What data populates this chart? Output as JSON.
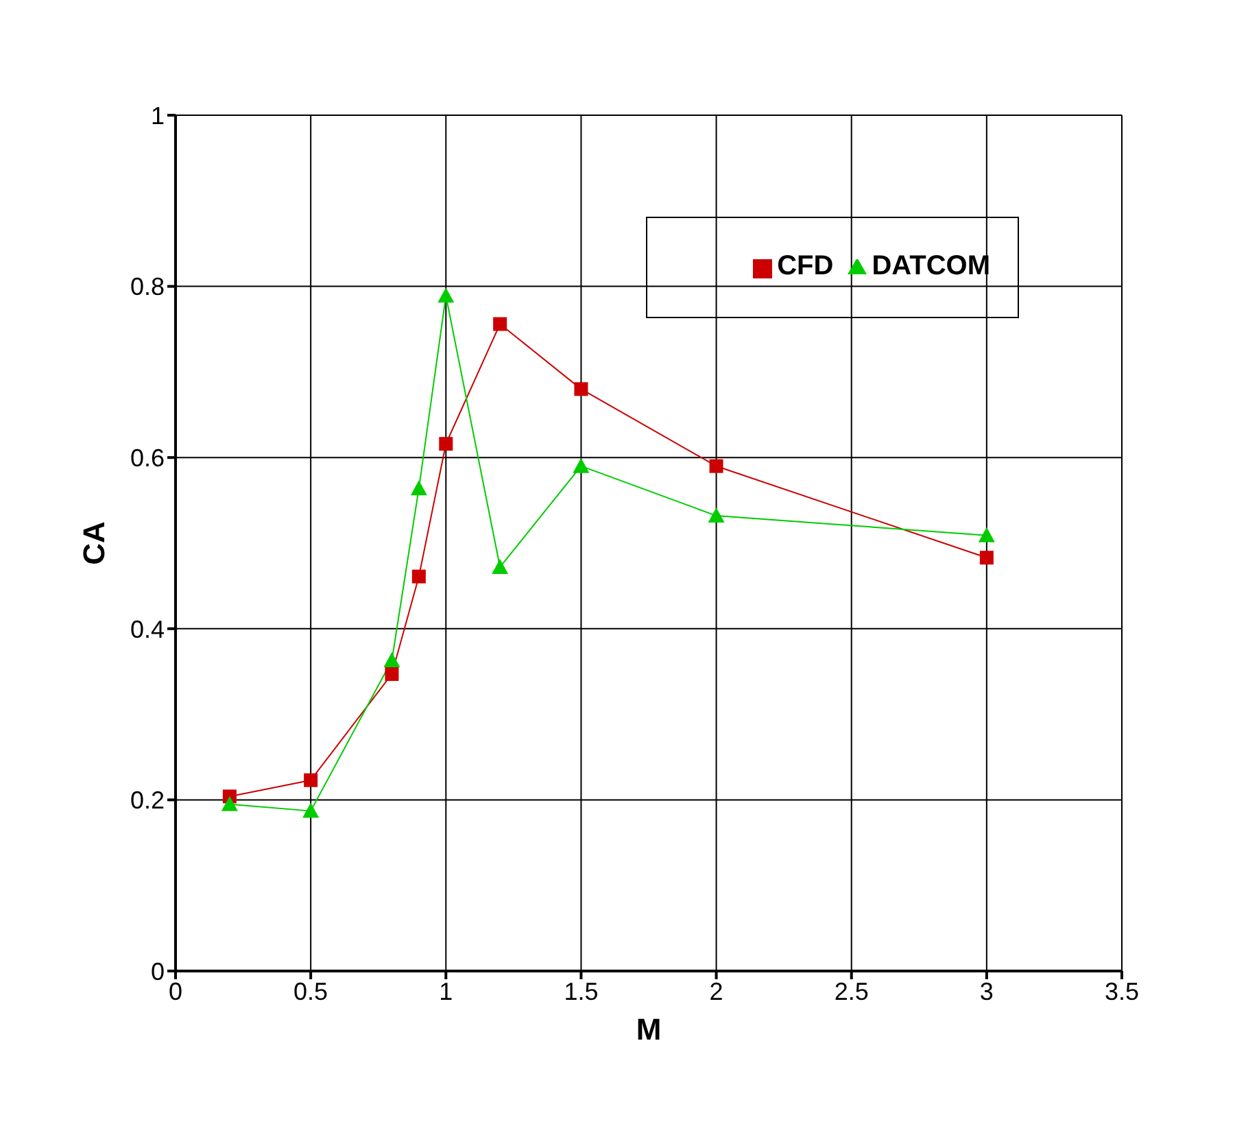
{
  "chart_data": {
    "type": "line",
    "xlabel": "M",
    "ylabel": "CA",
    "x": [
      0.2,
      0.5,
      0.8,
      0.9,
      1.0,
      1.2,
      1.5,
      2.0,
      3.0
    ],
    "series": [
      {
        "name": "CFD",
        "color": "#cc0000",
        "marker": "square",
        "values": [
          0.204,
          0.223,
          0.347,
          0.461,
          0.616,
          0.756,
          0.68,
          0.59,
          0.483
        ]
      },
      {
        "name": "DATCOM",
        "color": "#00cc00",
        "marker": "triangle",
        "values": [
          0.195,
          0.187,
          0.363,
          0.564,
          0.789,
          0.472,
          0.59,
          0.532,
          0.509
        ]
      }
    ],
    "xlim": [
      0,
      3.5
    ],
    "xticks": [
      0,
      0.5,
      1,
      1.5,
      2,
      2.5,
      3,
      3.5
    ],
    "ylim": [
      0,
      1
    ],
    "yticks": [
      0,
      0.2,
      0.4,
      0.6,
      0.8,
      1
    ],
    "grid": true,
    "legend": "top right",
    "line_style": "solid"
  }
}
